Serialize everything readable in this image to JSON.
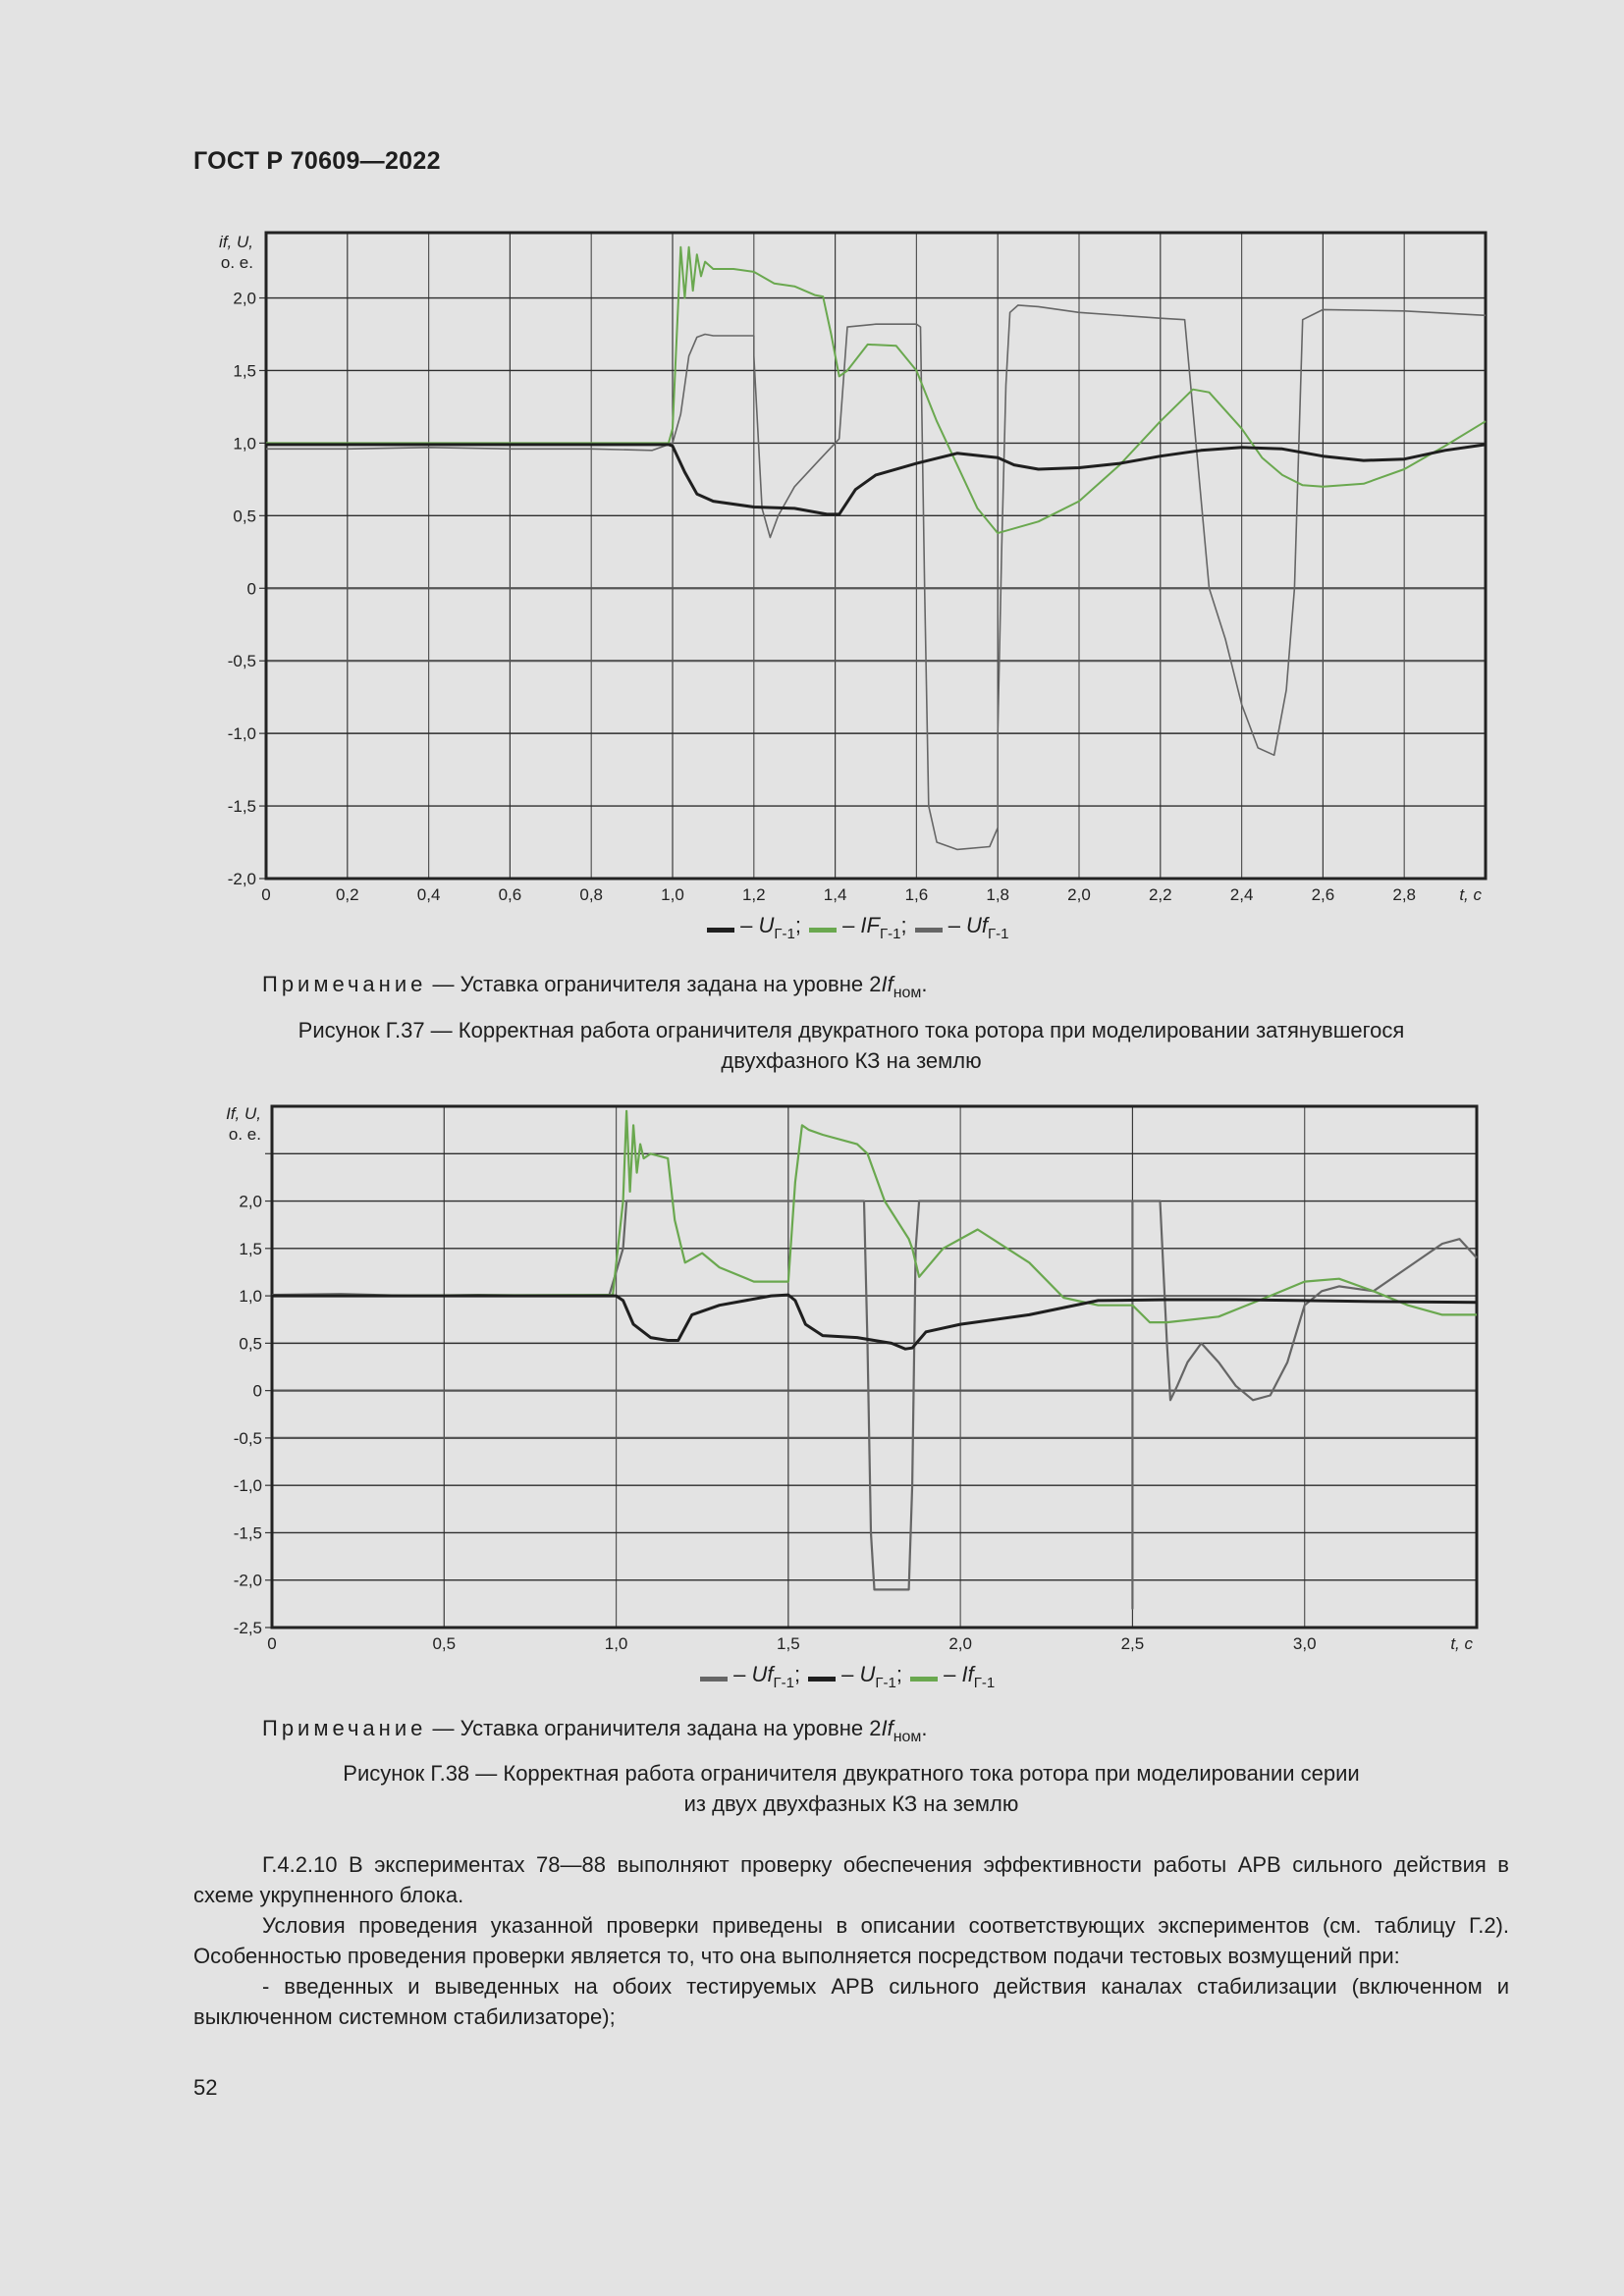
{
  "header": {
    "doc_id": "ГОСТ Р 70609—2022"
  },
  "figures": [
    {
      "id": "fig-g37",
      "y_axis_label_line1": "if, U,",
      "y_axis_label_line2": "о. е.",
      "x_unit_label": "t, с",
      "legend": [
        {
          "symbol": "U",
          "subscript": "Г-1",
          "color": "#1f1f1f",
          "separator": ";"
        },
        {
          "symbol": "IF",
          "subscript": "Г-1",
          "color": "#6aa84f",
          "separator": ";"
        },
        {
          "symbol": "Uf",
          "subscript": "Г-1",
          "color": "#666666",
          "separator": ""
        }
      ],
      "note_label": "Примечание",
      "note_text": "— Уставка ограничителя задана на уровне 2",
      "note_symbol": "If",
      "note_subscript": "ном",
      "caption_line1": "Рисунок Г.37 — Корректная работа ограничителя двукратного тока ротора при моделировании затянувшегося",
      "caption_line2": "двухфазного КЗ на землю"
    },
    {
      "id": "fig-g38",
      "y_axis_label_line1": "If, U,",
      "y_axis_label_line2": "о. е.",
      "x_unit_label": "t, с",
      "legend": [
        {
          "symbol": "Uf",
          "subscript": "Г-1",
          "color": "#666666",
          "separator": ";"
        },
        {
          "symbol": "U",
          "subscript": "Г-1",
          "color": "#1f1f1f",
          "separator": ";"
        },
        {
          "symbol": "If",
          "subscript": "Г-1",
          "color": "#6aa84f",
          "separator": ""
        }
      ],
      "note_label": "Примечание",
      "note_text": "— Уставка ограничителя задана на уровне 2",
      "note_symbol": "If",
      "note_subscript": "ном",
      "caption_line1": "Рисунок Г.38 — Корректная работа ограничителя двукратного тока ротора при моделировании серии",
      "caption_line2": "из двух двухфазных КЗ на землю"
    }
  ],
  "body_text": {
    "para1": "Г.4.2.10 В экспериментах 78—88 выполняют проверку обеспечения эффективности работы АРВ сильного действия в схеме укрупненного блока.",
    "para2": "Условия проведения указанной проверки приведены в описании соответствующих экспериментов (см. таблицу Г.2). Особенностью проведения проверки является то, что она выполняется посредством подачи тестовых возмущений при:",
    "para3": "- введенных и выведенных на обоих тестируемых АРВ сильного действия каналах стабилизации (включенном и выключенном системном стабилизаторе);"
  },
  "page_number": "52",
  "chart_data": [
    {
      "type": "line",
      "title": "Рисунок Г.37",
      "xlabel": "t, с",
      "ylabel": "if, U, о. е.",
      "xlim": [
        0,
        3.0
      ],
      "ylim": [
        -2.0,
        2.45
      ],
      "grid": true,
      "legend_position": "bottom",
      "x_ticks": [
        0,
        0.2,
        0.4,
        0.6,
        0.8,
        1.0,
        1.2,
        1.4,
        1.6,
        1.8,
        2.0,
        2.2,
        2.4,
        2.6,
        2.8
      ],
      "x_tick_labels": [
        "0",
        "0,2",
        "0,4",
        "0,6",
        "0,8",
        "1,0",
        "1,2",
        "1,4",
        "1,6",
        "1,8",
        "2,0",
        "2,2",
        "2,4",
        "2,6",
        "2,8"
      ],
      "y_ticks": [
        -2.0,
        -1.5,
        -1.0,
        -0.5,
        0,
        0.5,
        1.0,
        1.5,
        2.0
      ],
      "y_tick_labels": [
        "-2,0",
        "-1,5",
        "-1,0",
        "-0,5",
        "0",
        "0,5",
        "1,0",
        "1,5",
        "2,0"
      ],
      "series": [
        {
          "name": "U Г-1",
          "color": "#1f1f1f",
          "width": 3,
          "x": [
            0,
            0.99,
            1.0,
            1.03,
            1.06,
            1.1,
            1.2,
            1.3,
            1.38,
            1.41,
            1.45,
            1.5,
            1.6,
            1.7,
            1.8,
            1.84,
            1.9,
            2.0,
            2.1,
            2.2,
            2.3,
            2.4,
            2.5,
            2.6,
            2.7,
            2.8,
            2.9,
            3.0
          ],
          "y": [
            0.99,
            0.99,
            0.98,
            0.8,
            0.65,
            0.6,
            0.56,
            0.55,
            0.51,
            0.51,
            0.68,
            0.78,
            0.86,
            0.93,
            0.9,
            0.85,
            0.82,
            0.83,
            0.86,
            0.91,
            0.95,
            0.97,
            0.96,
            0.91,
            0.88,
            0.89,
            0.95,
            0.99
          ]
        },
        {
          "name": "IF Г-1",
          "color": "#6aa84f",
          "width": 2,
          "x": [
            0,
            0.99,
            1.0,
            1.02,
            1.03,
            1.04,
            1.05,
            1.06,
            1.07,
            1.08,
            1.1,
            1.15,
            1.2,
            1.25,
            1.3,
            1.35,
            1.37,
            1.39,
            1.41,
            1.43,
            1.48,
            1.55,
            1.6,
            1.65,
            1.7,
            1.75,
            1.8,
            1.85,
            1.9,
            2.0,
            2.1,
            2.2,
            2.28,
            2.32,
            2.4,
            2.45,
            2.5,
            2.55,
            2.6,
            2.7,
            2.8,
            2.9,
            3.0
          ],
          "y": [
            1.0,
            1.0,
            1.1,
            2.35,
            2.0,
            2.35,
            2.05,
            2.3,
            2.15,
            2.25,
            2.2,
            2.2,
            2.18,
            2.1,
            2.08,
            2.02,
            2.01,
            1.75,
            1.46,
            1.5,
            1.68,
            1.67,
            1.5,
            1.15,
            0.85,
            0.55,
            0.38,
            0.42,
            0.46,
            0.6,
            0.85,
            1.15,
            1.37,
            1.35,
            1.1,
            0.9,
            0.78,
            0.71,
            0.7,
            0.72,
            0.82,
            0.98,
            1.15
          ]
        },
        {
          "name": "Uf Г-1",
          "color": "#666666",
          "width": 1.6,
          "x": [
            0,
            0.2,
            0.4,
            0.6,
            0.8,
            0.95,
            1.0,
            1.02,
            1.04,
            1.06,
            1.08,
            1.1,
            1.2,
            1.2,
            1.22,
            1.24,
            1.26,
            1.3,
            1.36,
            1.4,
            1.41,
            1.43,
            1.5,
            1.6,
            1.61,
            1.62,
            1.63,
            1.65,
            1.7,
            1.78,
            1.8,
            1.8,
            1.81,
            1.82,
            1.83,
            1.85,
            1.9,
            2.0,
            2.2,
            2.26,
            2.32,
            2.36,
            2.4,
            2.44,
            2.48,
            2.51,
            2.53,
            2.55,
            2.6,
            2.8,
            3.0
          ],
          "y": [
            0.96,
            0.96,
            0.97,
            0.96,
            0.96,
            0.95,
            1.0,
            1.2,
            1.6,
            1.73,
            1.75,
            1.74,
            1.74,
            1.6,
            0.55,
            0.35,
            0.5,
            0.7,
            0.88,
            1.0,
            1.03,
            1.8,
            1.82,
            1.82,
            1.8,
            0.0,
            -1.5,
            -1.75,
            -1.8,
            -1.78,
            -1.65,
            -1.0,
            0.3,
            1.4,
            1.9,
            1.95,
            1.94,
            1.9,
            1.86,
            1.85,
            0.0,
            -0.35,
            -0.8,
            -1.1,
            -1.15,
            -0.7,
            0.0,
            1.85,
            1.92,
            1.91,
            1.88
          ]
        }
      ]
    },
    {
      "type": "line",
      "title": "Рисунок Г.38",
      "xlabel": "t, с",
      "ylabel": "If, U, о. е.",
      "xlim": [
        0,
        3.5
      ],
      "ylim": [
        -2.5,
        3.0
      ],
      "grid": true,
      "legend_position": "bottom",
      "x_ticks": [
        0,
        0.5,
        1.0,
        1.5,
        2.0,
        2.5,
        3.0
      ],
      "x_tick_labels": [
        "0",
        "0,5",
        "1,0",
        "1,5",
        "2,0",
        "2,5",
        "3,0"
      ],
      "y_ticks": [
        -2.5,
        -2.0,
        -1.5,
        -1.0,
        -0.5,
        0,
        0.5,
        1.0,
        1.5,
        2.0,
        2.5
      ],
      "y_tick_labels": [
        "-2,5",
        "-2,0",
        "-1,5",
        "-1,0",
        "-0,5",
        "0",
        "0,5",
        "1,0",
        "1,5",
        "2,0",
        ""
      ],
      "series": [
        {
          "name": "Uf Г-1",
          "color": "#666666",
          "width": 2.2,
          "x": [
            0,
            0.2,
            0.4,
            0.6,
            0.8,
            0.98,
            1.02,
            1.03,
            1.04,
            1.1,
            1.5,
            1.72,
            1.73,
            1.74,
            1.75,
            1.85,
            1.86,
            1.87,
            1.88,
            2.5,
            2.5,
            2.5,
            2.58,
            2.6,
            2.61,
            2.63,
            2.66,
            2.7,
            2.75,
            2.8,
            2.85,
            2.9,
            2.95,
            3.0,
            3.05,
            3.1,
            3.2,
            3.3,
            3.4,
            3.45,
            3.5
          ],
          "y": [
            1.01,
            1.02,
            1.0,
            1.01,
            1.0,
            1.01,
            1.5,
            2.0,
            2.0,
            2.0,
            2.0,
            2.0,
            0.5,
            -1.5,
            -2.1,
            -2.1,
            -1.0,
            1.5,
            2.0,
            2.0,
            -2.3,
            2.0,
            2.0,
            0.5,
            -0.1,
            0.05,
            0.3,
            0.5,
            0.3,
            0.05,
            -0.1,
            -0.05,
            0.3,
            0.9,
            1.05,
            1.1,
            1.05,
            1.3,
            1.55,
            1.6,
            1.4
          ]
        },
        {
          "name": "U Г-1",
          "color": "#1f1f1f",
          "width": 3,
          "x": [
            0,
            1.0,
            1.02,
            1.05,
            1.1,
            1.15,
            1.18,
            1.22,
            1.3,
            1.45,
            1.5,
            1.52,
            1.55,
            1.6,
            1.7,
            1.8,
            1.84,
            1.86,
            1.9,
            2.0,
            2.2,
            2.4,
            2.6,
            2.8,
            3.0,
            3.2,
            3.5
          ],
          "y": [
            1.0,
            1.0,
            0.95,
            0.7,
            0.56,
            0.53,
            0.53,
            0.8,
            0.9,
            1.0,
            1.01,
            0.95,
            0.7,
            0.58,
            0.56,
            0.5,
            0.44,
            0.45,
            0.62,
            0.7,
            0.8,
            0.95,
            0.96,
            0.96,
            0.95,
            0.94,
            0.93
          ]
        },
        {
          "name": "If Г-1",
          "color": "#6aa84f",
          "width": 2.2,
          "x": [
            0,
            0.99,
            1.02,
            1.03,
            1.04,
            1.05,
            1.06,
            1.07,
            1.08,
            1.1,
            1.15,
            1.17,
            1.2,
            1.25,
            1.3,
            1.4,
            1.5,
            1.52,
            1.54,
            1.56,
            1.6,
            1.7,
            1.73,
            1.78,
            1.85,
            1.86,
            1.88,
            1.95,
            2.05,
            2.2,
            2.3,
            2.4,
            2.5,
            2.55,
            2.6,
            2.75,
            2.9,
            3.0,
            3.1,
            3.2,
            3.3,
            3.4,
            3.5
          ],
          "y": [
            1.0,
            1.01,
            2.0,
            2.95,
            2.1,
            2.8,
            2.3,
            2.6,
            2.45,
            2.5,
            2.45,
            1.8,
            1.35,
            1.45,
            1.3,
            1.15,
            1.15,
            2.2,
            2.8,
            2.75,
            2.7,
            2.6,
            2.5,
            2.0,
            1.6,
            1.5,
            1.2,
            1.5,
            1.7,
            1.35,
            0.98,
            0.9,
            0.9,
            0.72,
            0.72,
            0.78,
            1.0,
            1.15,
            1.18,
            1.05,
            0.9,
            0.8,
            0.8
          ]
        }
      ]
    }
  ]
}
